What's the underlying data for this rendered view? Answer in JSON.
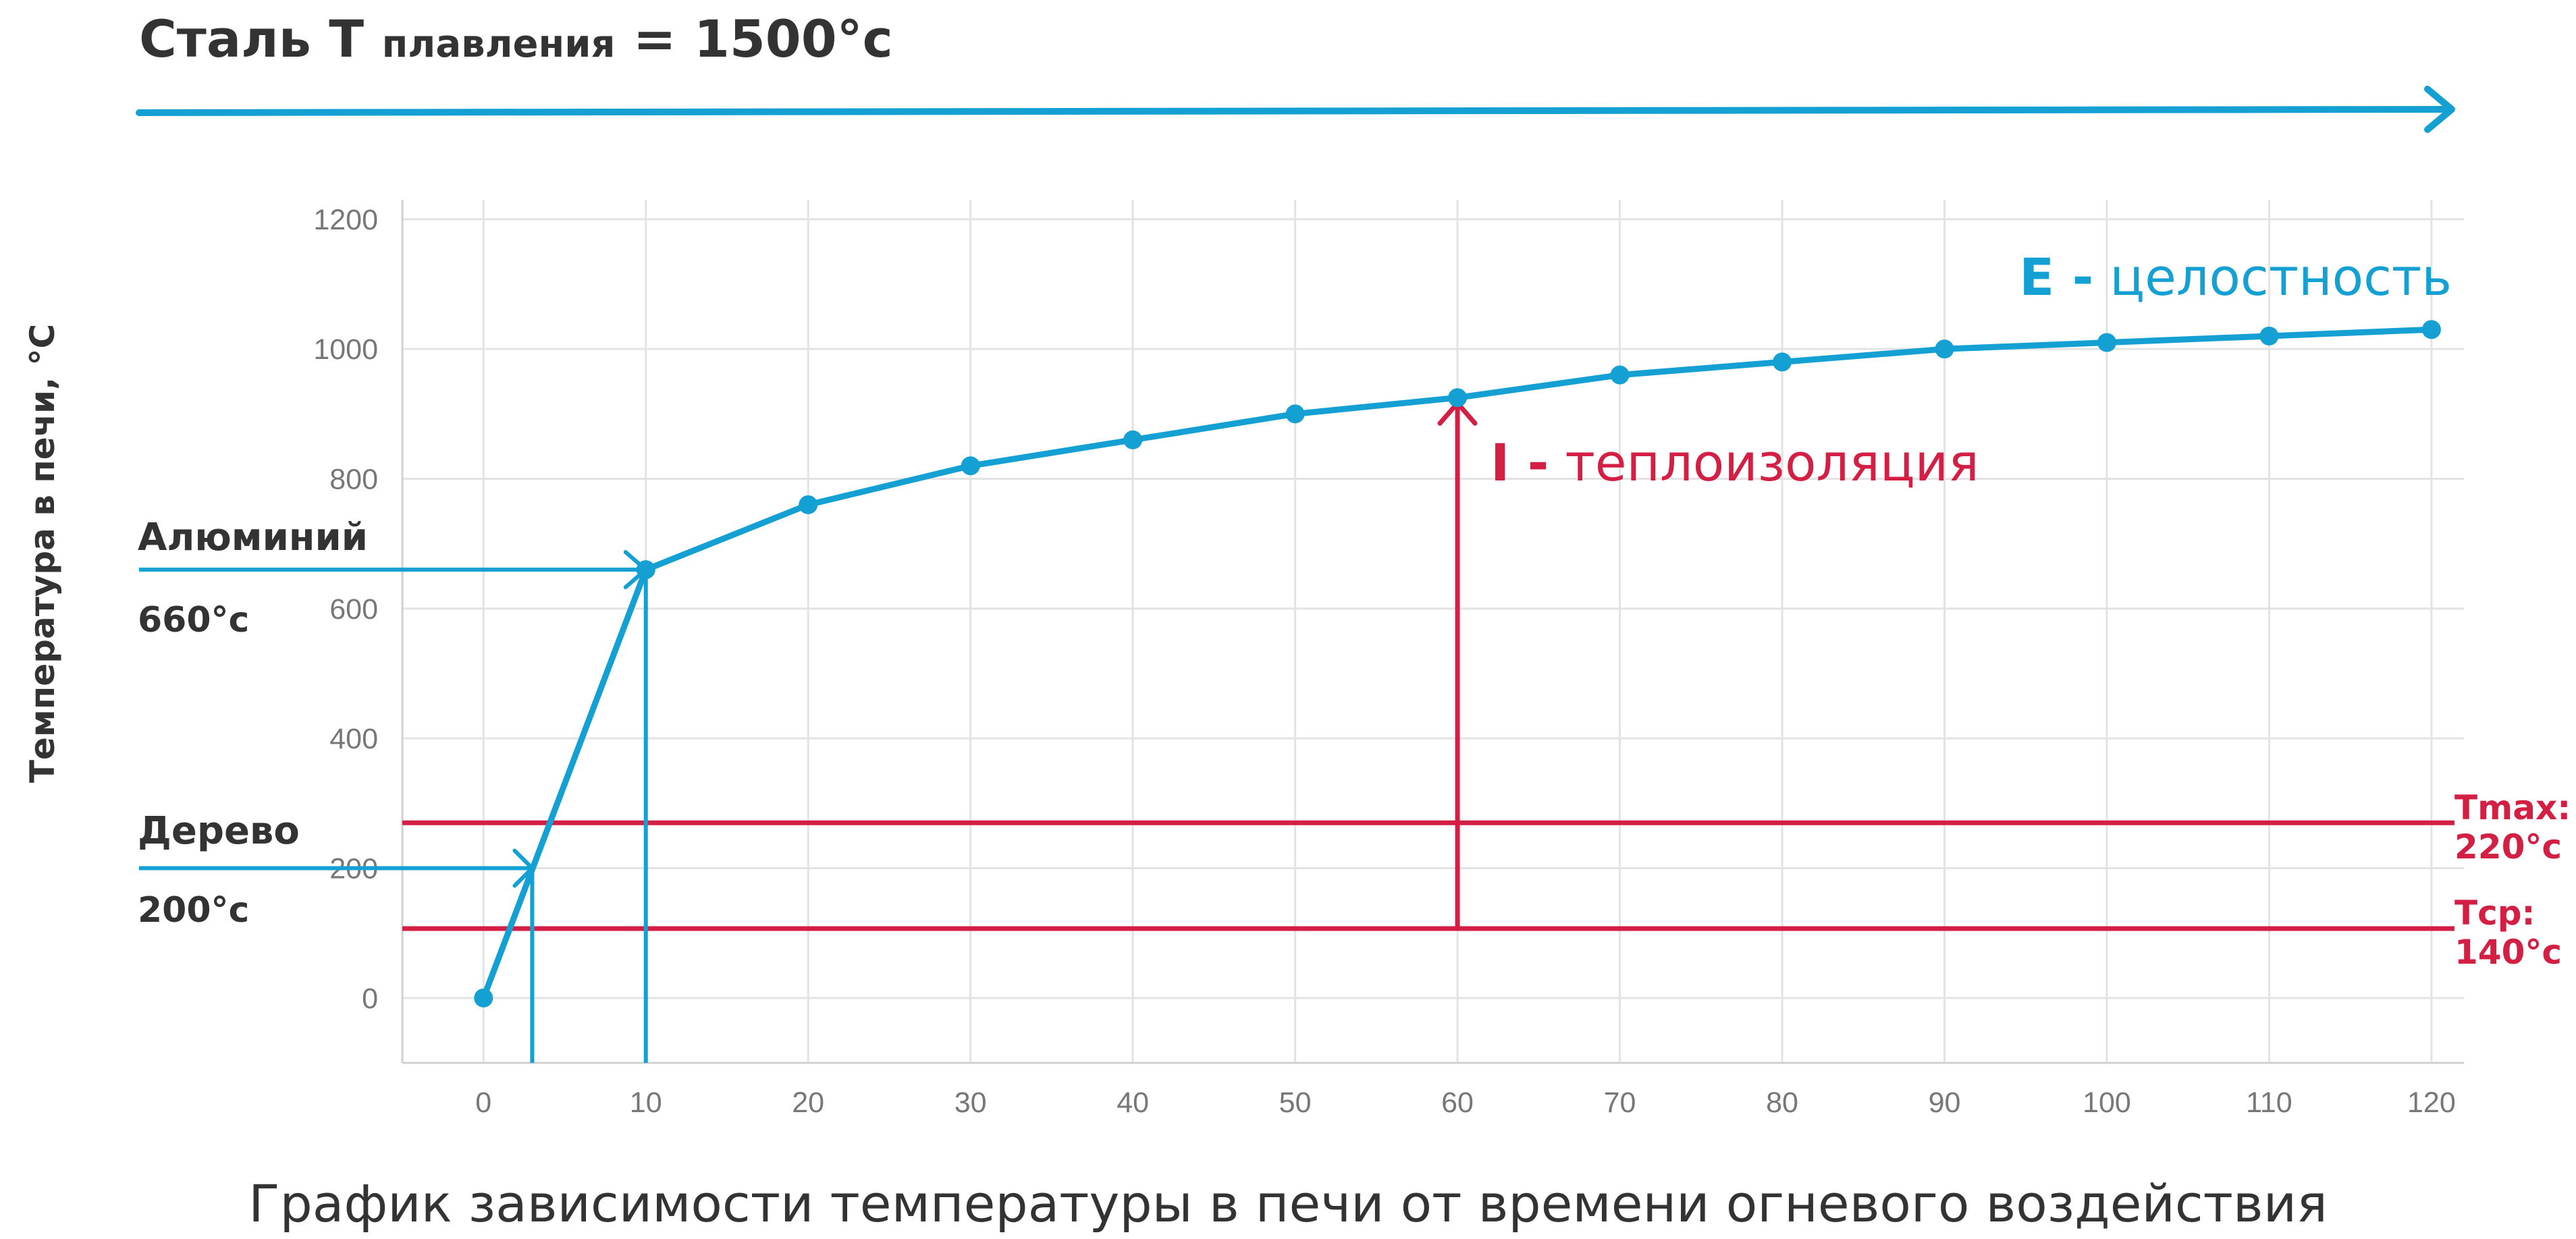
{
  "header": {
    "title_main": "Сталь T",
    "title_sub": "плавления",
    "title_value": "= 1500°c"
  },
  "caption": "График зависимости температуры в печи от времени огневого воздействия",
  "colors": {
    "blue": "#14a0d2",
    "red": "#d21f43",
    "grid": "#e3e3e3",
    "tick": "#777777",
    "text_dark": "#333333"
  },
  "annotations": {
    "e_letter": "E -",
    "e_text": "целостность",
    "i_letter": "I -",
    "i_text": "теплоизоляция",
    "aluminum_name": "Алюминий",
    "aluminum_temp": "660°c",
    "wood_name": "Дерево",
    "wood_temp": "200°c",
    "tmax_label": "Tmax:",
    "tmax_value": "220°c",
    "tavg_label": "Tср:",
    "tavg_value": "140°c"
  },
  "chart_data": {
    "type": "line",
    "title": "",
    "xlabel": "",
    "ylabel": "Температура в печи, °C",
    "xlim": [
      -5,
      122
    ],
    "ylim": [
      -100,
      1230
    ],
    "x_ticks": [
      0,
      10,
      20,
      30,
      40,
      50,
      60,
      70,
      80,
      90,
      100,
      110,
      120
    ],
    "y_ticks": [
      0,
      200,
      400,
      600,
      800,
      1000,
      1200
    ],
    "grid": true,
    "series": [
      {
        "x": [
          0,
          10,
          20,
          30,
          40,
          50,
          60,
          70,
          80,
          90,
          100,
          110,
          120
        ],
        "y": [
          0,
          660,
          760,
          820,
          860,
          900,
          925,
          960,
          980,
          1000,
          1010,
          1020,
          1030
        ]
      }
    ],
    "reference_lines": [
      {
        "label": "Tmax",
        "y": 270
      },
      {
        "label": "Tср",
        "y": 107
      }
    ],
    "markers": [
      {
        "label": "Дерево",
        "x": 3,
        "y": 200
      },
      {
        "label": "Алюминий",
        "x": 10,
        "y": 660
      },
      {
        "label": "I",
        "x": 60,
        "y_from": 107,
        "y_to": 925
      }
    ]
  }
}
